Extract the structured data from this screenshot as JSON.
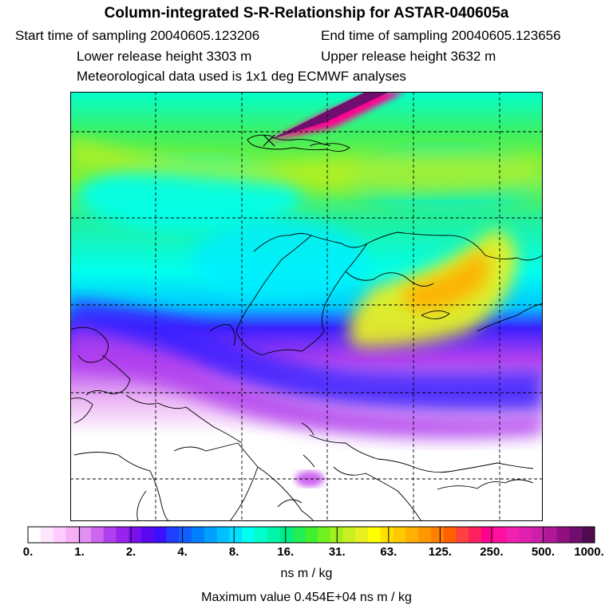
{
  "header": {
    "title": "Column-integrated S-R-Relationship for ASTAR-040605a",
    "start_time": "Start time of sampling 20040605.123206",
    "end_time": "End time of sampling 20040605.123656",
    "lower_height": "Lower release height 3303 m",
    "upper_height": "Upper release height 3632 m",
    "met_data": "Meteorological data used is 1x1 deg ECMWF analyses"
  },
  "colorbar": {
    "ticks": [
      "0.",
      "1.",
      "2.",
      "4.",
      "8.",
      "16.",
      "31.",
      "63.",
      "125.",
      "250.",
      "500.",
      "1000."
    ],
    "colors": [
      "#ffffff",
      "#ffe6ff",
      "#ffccff",
      "#f5b0f5",
      "#e090f0",
      "#cc66ee",
      "#b040ee",
      "#9922ee",
      "#7a10ee",
      "#5a08f0",
      "#3a10ff",
      "#2040ff",
      "#1060ff",
      "#0080ff",
      "#00a0ff",
      "#00c0ff",
      "#00e0ff",
      "#00ffee",
      "#00ffcc",
      "#00f5aa",
      "#00ee88",
      "#20ee55",
      "#40f030",
      "#70f020",
      "#a0f020",
      "#c8f020",
      "#e8f020",
      "#ffff00",
      "#ffe000",
      "#ffc800",
      "#ffb000",
      "#ff9800",
      "#ff8000",
      "#ff6000",
      "#ff4040",
      "#ff2060",
      "#ff0090",
      "#ff10a0",
      "#f020b0",
      "#e020b0",
      "#cc20a8",
      "#b01898",
      "#901080",
      "#700e70",
      "#500a50"
    ],
    "units": "ns m / kg",
    "max_value": "Maximum value  0.454E+04 ns m / kg"
  }
}
